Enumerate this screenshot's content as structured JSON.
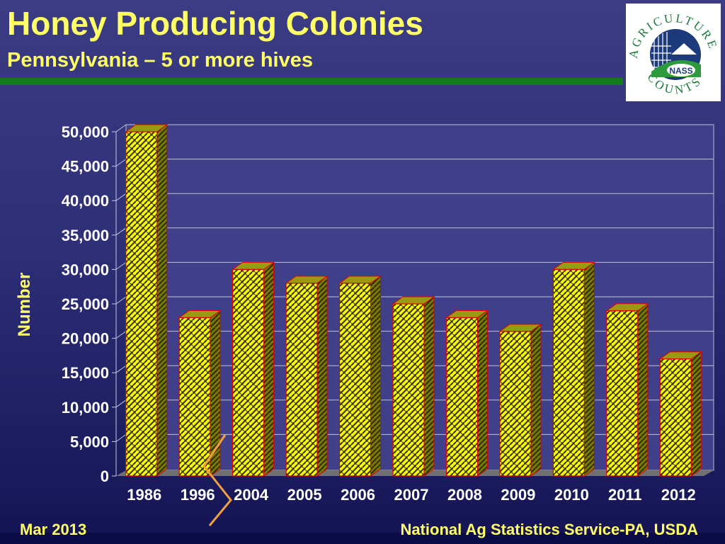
{
  "header": {
    "title": "Honey Producing Colonies",
    "subtitle": "Pennsylvania – 5 or more hives"
  },
  "logo": {
    "text_top": "AGRICULTURE",
    "text_bottom": "COUNTS",
    "badge": "NASS"
  },
  "footer": {
    "left": "Mar 2013",
    "right": "National Ag Statistics Service-PA, USDA"
  },
  "colors": {
    "bar_face": "#ffff00",
    "bar_outline": "#e00000",
    "bar_pattern": "#3a3a00",
    "accent_title": "#ffff66",
    "header_rule": "#117a1a",
    "axis_break": "#f0a040"
  },
  "chart_data": {
    "type": "bar",
    "categories": [
      "1986",
      "1996",
      "2004",
      "2005",
      "2006",
      "2007",
      "2008",
      "2009",
      "2010",
      "2011",
      "2012"
    ],
    "values": [
      50000,
      23000,
      30000,
      28000,
      28000,
      25000,
      23000,
      21000,
      30000,
      24000,
      17000
    ],
    "ylabel": "Number",
    "xlabel": "",
    "ylim": [
      0,
      50000
    ],
    "yticks": [
      "0",
      "5,000",
      "10,000",
      "15,000",
      "20,000",
      "25,000",
      "30,000",
      "35,000",
      "40,000",
      "45,000",
      "50,000"
    ],
    "grid": true,
    "axis_break": true,
    "style": "3d-bar-patterned"
  }
}
